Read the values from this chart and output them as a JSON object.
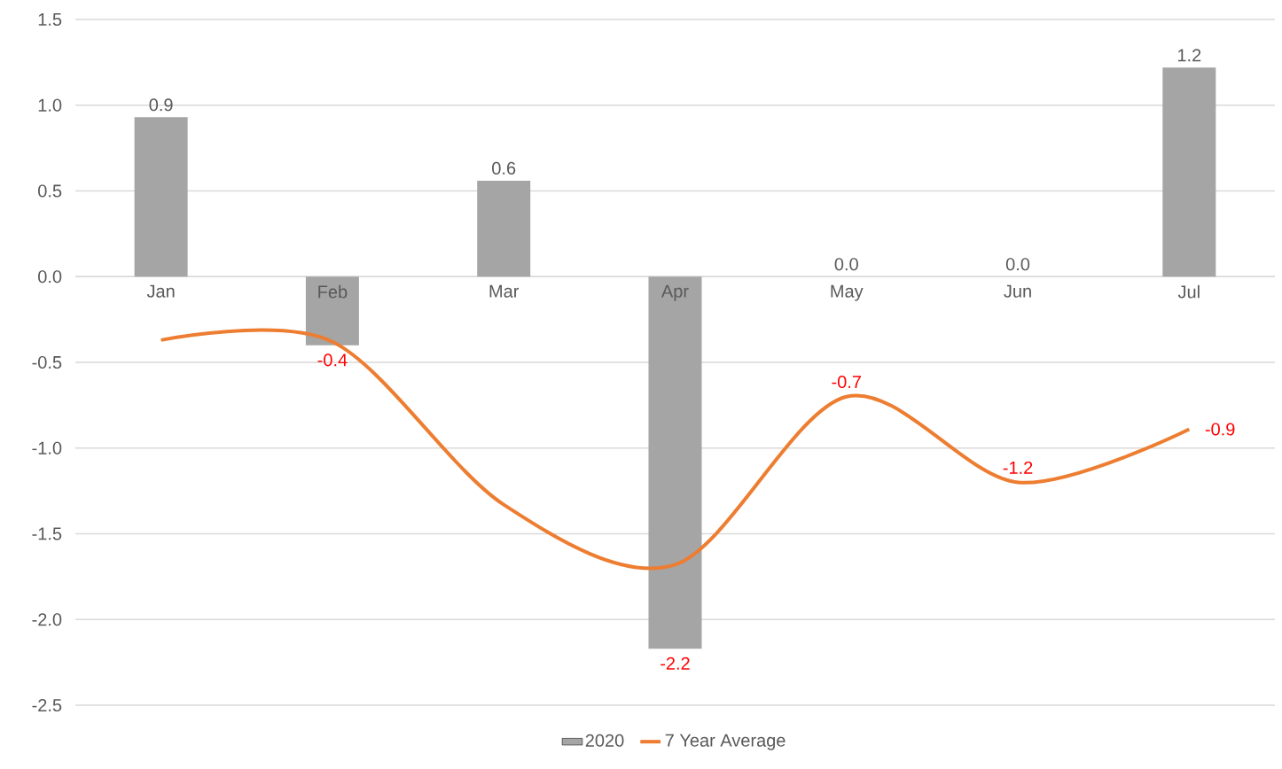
{
  "chart_data": {
    "type": "bar",
    "categories": [
      "Jan",
      "Feb",
      "Mar",
      "Apr",
      "May",
      "Jun",
      "Jul"
    ],
    "series": [
      {
        "name": "2020",
        "color": "#a5a5a5",
        "values": [
          0.93,
          -0.4,
          0.56,
          -2.17,
          0.0,
          0.0,
          1.22
        ],
        "value_labels": [
          "0.9",
          "-0.4",
          "0.6",
          "-2.2",
          "0.0",
          "0.0",
          "1.2"
        ]
      },
      {
        "name": "7 Year Average",
        "type": "line",
        "color": "#ed7d31",
        "values": [
          -0.37,
          -0.38,
          -1.33,
          -1.68,
          -0.7,
          -1.2,
          -0.89
        ],
        "value_labels": [
          null,
          null,
          null,
          null,
          "-0.7",
          "-1.2",
          "-0.9"
        ]
      }
    ],
    "ylim": [
      -2.5,
      1.5
    ],
    "yticks": [
      {
        "value": -2.5,
        "label": "-2.5"
      },
      {
        "value": -2.0,
        "label": "-2.0"
      },
      {
        "value": -1.5,
        "label": "-1.5"
      },
      {
        "value": -1.0,
        "label": "-1.0"
      },
      {
        "value": -0.5,
        "label": "-0.5"
      },
      {
        "value": 0.0,
        "label": "0.0"
      },
      {
        "value": 0.5,
        "label": "0.5"
      },
      {
        "value": 1.0,
        "label": "1.0"
      },
      {
        "value": 1.5,
        "label": "1.5"
      }
    ],
    "grid": "y",
    "legend": "bottom",
    "marker": "none",
    "line_style": "solid"
  }
}
